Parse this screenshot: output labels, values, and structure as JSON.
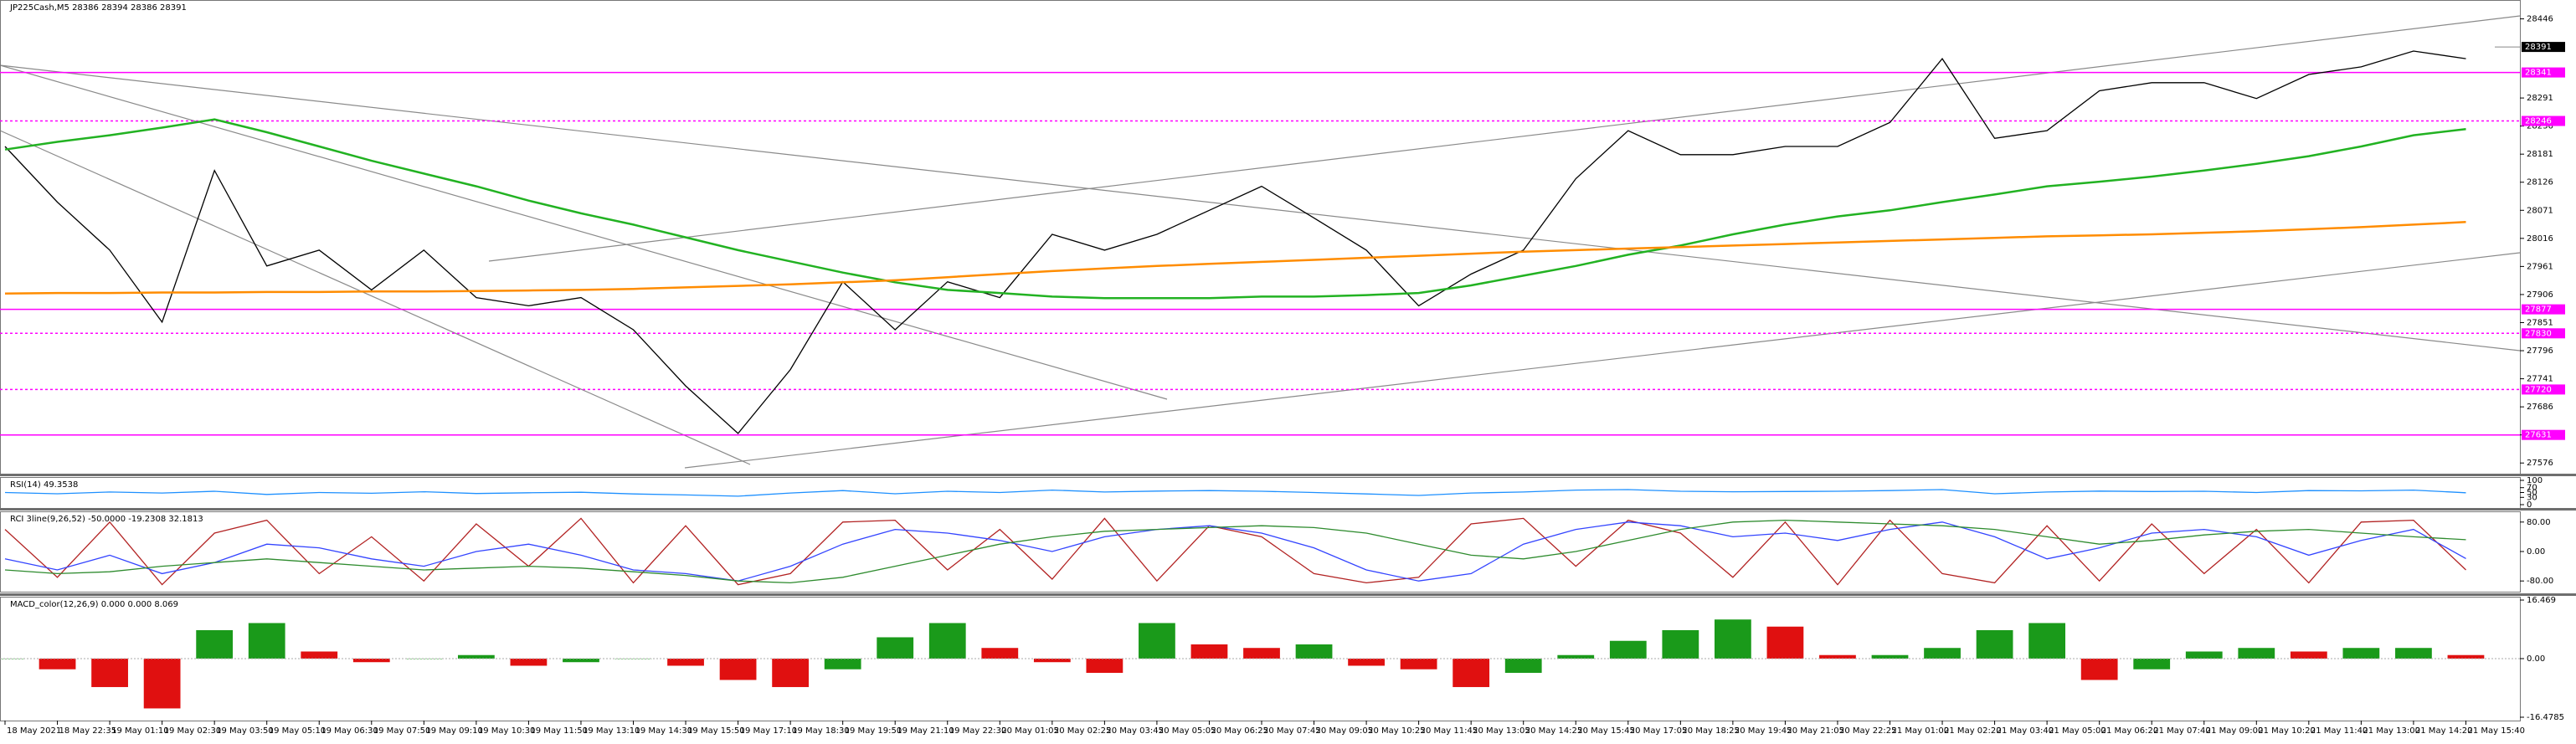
{
  "chart_data": [
    {
      "type": "line",
      "title": "JP225Cash,M5 28386 28394 28386 28391",
      "categories": [
        "18 May 2021",
        "18 May 22:35",
        "19 May 01:10",
        "19 May 02:30",
        "19 May 03:50",
        "19 May 05:10",
        "19 May 06:30",
        "19 May 07:50",
        "19 May 09:10",
        "19 May 10:30",
        "19 May 11:50",
        "19 May 13:10",
        "19 May 14:30",
        "19 May 15:50",
        "19 May 17:10",
        "19 May 18:30",
        "19 May 19:50",
        "19 May 21:10",
        "19 May 22:30",
        "20 May 01:05",
        "20 May 02:25",
        "20 May 03:45",
        "20 May 05:05",
        "20 May 06:25",
        "20 May 07:45",
        "20 May 09:05",
        "20 May 10:25",
        "20 May 11:45",
        "20 May 13:05",
        "20 May 14:25",
        "20 May 15:45",
        "20 May 17:05",
        "20 May 18:25",
        "20 May 19:45",
        "20 May 21:05",
        "20 May 22:25",
        "21 May 01:00",
        "21 May 02:20",
        "21 May 03:40",
        "21 May 05:00",
        "21 May 06:20",
        "21 May 07:40",
        "21 May 09:00",
        "21 May 10:20",
        "21 May 11:40",
        "21 May 13:00",
        "21 May 14:20",
        "21 May 15:40"
      ],
      "series": [
        {
          "color": "#000000",
          "values": [
            28196,
            28087,
            27993,
            27852,
            28149,
            27962,
            27993,
            27915,
            27993,
            27900,
            27884,
            27900,
            27837,
            27727,
            27634,
            27759,
            27931,
            27837,
            27931,
            27900,
            28024,
            27993,
            28024,
            28071,
            28118,
            28056,
            27993,
            27884,
            27946,
            27993,
            28133,
            28227,
            28180,
            28180,
            28196,
            28196,
            28243,
            28368,
            28212,
            28227,
            28305,
            28321,
            28321,
            28290,
            28337,
            28352,
            28383,
            28368
          ]
        },
        {
          "color": "#22b222",
          "values": [
            28190,
            28205,
            28218,
            28233,
            28249,
            28224,
            28196,
            28168,
            28143,
            28118,
            28090,
            28065,
            28043,
            28018,
            27993,
            27971,
            27949,
            27930,
            27915,
            27909,
            27902,
            27899,
            27899,
            27899,
            27902,
            27902,
            27905,
            27909,
            27924,
            27943,
            27962,
            27984,
            28002,
            28024,
            28043,
            28059,
            28071,
            28087,
            28102,
            28118,
            28127,
            28137,
            28149,
            28162,
            28177,
            28196,
            28218,
            28230
          ]
        },
        {
          "color": "#ff8c00",
          "values": [
            27908,
            27909,
            27909,
            27910,
            27910,
            27911,
            27911,
            27912,
            27912,
            27913,
            27914,
            27915,
            27917,
            27920,
            27923,
            27926,
            27930,
            27934,
            27940,
            27946,
            27952,
            27957,
            27962,
            27966,
            27970,
            27974,
            27978,
            27982,
            27986,
            27990,
            27993,
            27996,
            27999,
            28002,
            28005,
            28008,
            28011,
            28014,
            28017,
            28020,
            28022,
            28024,
            28027,
            28030,
            28034,
            28038,
            28043,
            28048
          ]
        }
      ],
      "ylim": [
        27560,
        28460
      ],
      "yticks": [
        27576,
        27631,
        27686,
        27741,
        27796,
        27851,
        27906,
        27961,
        28016,
        28071,
        28126,
        28181,
        28236,
        28291,
        28446
      ],
      "levels": [
        {
          "value": 28341,
          "style": "solid"
        },
        {
          "value": 28246,
          "style": "dotted"
        },
        {
          "value": 27877,
          "style": "solid"
        },
        {
          "value": 27830,
          "style": "dotted"
        },
        {
          "value": 27720,
          "style": "dotted"
        },
        {
          "value": 27631,
          "style": "solid"
        }
      ],
      "level_color": "#ff00ff",
      "last_price": 28391
    },
    {
      "type": "line",
      "title": "RSI(14) 49.3538",
      "series": [
        {
          "color": "#1e90ff",
          "values": [
            50,
            45,
            52,
            48,
            55,
            42,
            50,
            47,
            53,
            46,
            49,
            51,
            44,
            40,
            35,
            48,
            58,
            45,
            55,
            50,
            60,
            52,
            56,
            58,
            55,
            50,
            44,
            38,
            48,
            52,
            60,
            62,
            55,
            53,
            54,
            55,
            58,
            62,
            45,
            52,
            56,
            54,
            55,
            50,
            58,
            57,
            60,
            49
          ]
        }
      ],
      "ylim": [
        0,
        100
      ],
      "yticks": [
        0,
        30,
        50,
        70,
        100
      ]
    },
    {
      "type": "line",
      "title": "RCI 3line(9,26,52) -50.0000 -19.2308 32.1813",
      "series": [
        {
          "color": "#b22222",
          "values": [
            60,
            -70,
            80,
            -90,
            50,
            85,
            -60,
            40,
            -80,
            75,
            -40,
            90,
            -85,
            70,
            -90,
            -60,
            80,
            85,
            -50,
            60,
            -75,
            90,
            -80,
            70,
            40,
            -60,
            -85,
            -70,
            75,
            90,
            -40,
            85,
            50,
            -70,
            80,
            -90,
            85,
            -60,
            -85,
            70,
            -80,
            75,
            -60,
            60,
            -85,
            80,
            85,
            -50
          ]
        },
        {
          "color": "#3344ff",
          "values": [
            -20,
            -50,
            -10,
            -60,
            -30,
            20,
            10,
            -20,
            -40,
            0,
            20,
            -10,
            -50,
            -60,
            -80,
            -40,
            20,
            60,
            50,
            30,
            0,
            40,
            60,
            70,
            50,
            10,
            -50,
            -80,
            -60,
            20,
            60,
            80,
            70,
            40,
            50,
            30,
            60,
            80,
            40,
            -20,
            10,
            50,
            60,
            40,
            -10,
            30,
            60,
            -19
          ]
        },
        {
          "color": "#2e8b2e",
          "values": [
            -50,
            -60,
            -55,
            -40,
            -30,
            -20,
            -30,
            -40,
            -50,
            -45,
            -40,
            -45,
            -55,
            -65,
            -80,
            -85,
            -70,
            -40,
            -10,
            20,
            40,
            55,
            60,
            65,
            70,
            65,
            50,
            20,
            -10,
            -20,
            0,
            30,
            60,
            80,
            85,
            80,
            75,
            70,
            60,
            40,
            20,
            30,
            45,
            55,
            60,
            50,
            40,
            32
          ]
        }
      ],
      "ylim": [
        -100,
        100
      ],
      "yticks": [
        {
          "value": -80,
          "label": "-80.00"
        },
        {
          "value": 0,
          "label": "0.00"
        },
        {
          "value": 80,
          "label": "80.00"
        }
      ]
    },
    {
      "type": "bar",
      "title": "MACD_color(12,26,9) 0.000 0.000 8.069",
      "values": [
        0,
        -3,
        -8,
        -14,
        8,
        10,
        2,
        -1,
        0,
        1,
        -2,
        -1,
        0,
        -2,
        -6,
        -8,
        -3,
        6,
        10,
        3,
        -1,
        -4,
        10,
        4,
        3,
        4,
        -2,
        -3,
        -8,
        -4,
        1,
        5,
        8,
        11,
        9,
        1,
        1,
        3,
        8,
        10,
        -6,
        -3,
        2,
        3,
        2,
        3,
        3,
        1
      ],
      "up_color": "#1a9a1a",
      "down_color": "#e01010",
      "ylim": [
        -16.4785,
        16.469
      ],
      "yticks": [
        -16.4785,
        {
          "value": 0,
          "label": "0.00"
        },
        16.469
      ]
    }
  ]
}
